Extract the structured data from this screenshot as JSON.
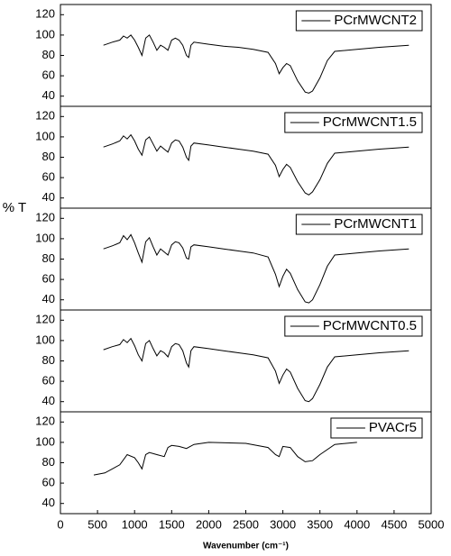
{
  "y_label": "% T",
  "chart_data": [
    {
      "type": "line",
      "xlim": [
        0,
        5000
      ],
      "ylim": [
        30,
        130
      ],
      "yticks": [
        40,
        60,
        80,
        100,
        120
      ],
      "x": [
        580,
        700,
        800,
        850,
        900,
        950,
        1000,
        1050,
        1100,
        1150,
        1200,
        1250,
        1300,
        1350,
        1400,
        1450,
        1500,
        1550,
        1600,
        1650,
        1700,
        1730,
        1760,
        1800,
        2000,
        2200,
        2400,
        2600,
        2800,
        2900,
        2950,
        3000,
        3050,
        3100,
        3200,
        3300,
        3350,
        3400,
        3500,
        3600,
        3700,
        4000,
        4300,
        4700
      ],
      "series": [
        {
          "name": "PCrMWCNT2",
          "color": "#000000",
          "values": [
            90,
            93,
            95,
            99,
            97,
            100,
            95,
            88,
            80,
            97,
            100,
            93,
            85,
            90,
            88,
            85,
            95,
            97,
            95,
            90,
            80,
            78,
            90,
            93,
            91,
            89,
            88,
            86,
            83,
            72,
            62,
            68,
            72,
            70,
            55,
            44,
            43,
            45,
            58,
            75,
            84,
            86,
            88,
            90
          ]
        }
      ]
    },
    {
      "type": "line",
      "xlim": [
        0,
        5000
      ],
      "ylim": [
        30,
        130
      ],
      "yticks": [
        40,
        60,
        80,
        100,
        120
      ],
      "x": [
        580,
        700,
        800,
        850,
        900,
        950,
        1000,
        1050,
        1100,
        1150,
        1200,
        1250,
        1300,
        1350,
        1400,
        1450,
        1500,
        1550,
        1600,
        1650,
        1700,
        1730,
        1760,
        1800,
        2000,
        2200,
        2400,
        2600,
        2800,
        2900,
        2950,
        3000,
        3050,
        3100,
        3200,
        3300,
        3350,
        3400,
        3500,
        3600,
        3700,
        4000,
        4300,
        4700
      ],
      "series": [
        {
          "name": "PCrMWCNT1.5",
          "color": "#000000",
          "values": [
            90,
            93,
            96,
            101,
            98,
            102,
            96,
            88,
            82,
            97,
            100,
            93,
            86,
            91,
            88,
            85,
            94,
            97,
            96,
            90,
            80,
            77,
            91,
            94,
            92,
            90,
            88,
            86,
            83,
            72,
            61,
            68,
            73,
            70,
            56,
            45,
            43,
            46,
            58,
            74,
            84,
            86,
            88,
            90
          ]
        }
      ]
    },
    {
      "type": "line",
      "xlim": [
        0,
        5000
      ],
      "ylim": [
        30,
        130
      ],
      "yticks": [
        40,
        60,
        80,
        100,
        120
      ],
      "x": [
        580,
        700,
        800,
        850,
        900,
        950,
        1000,
        1050,
        1100,
        1150,
        1200,
        1250,
        1300,
        1350,
        1400,
        1450,
        1500,
        1550,
        1600,
        1650,
        1700,
        1730,
        1760,
        1800,
        2000,
        2200,
        2400,
        2600,
        2800,
        2900,
        2950,
        3000,
        3050,
        3100,
        3200,
        3300,
        3350,
        3400,
        3500,
        3600,
        3700,
        4000,
        4300,
        4700
      ],
      "series": [
        {
          "name": "PCrMWCNT1",
          "color": "#000000",
          "values": [
            90,
            93,
            96,
            103,
            99,
            104,
            96,
            86,
            77,
            97,
            101,
            92,
            84,
            90,
            87,
            84,
            94,
            97,
            96,
            91,
            81,
            80,
            92,
            94,
            92,
            90,
            88,
            86,
            82,
            65,
            53,
            63,
            70,
            66,
            50,
            38,
            37,
            40,
            55,
            73,
            84,
            86,
            88,
            90
          ]
        }
      ]
    },
    {
      "type": "line",
      "xlim": [
        0,
        5000
      ],
      "ylim": [
        30,
        130
      ],
      "yticks": [
        40,
        60,
        80,
        100,
        120
      ],
      "x": [
        580,
        700,
        800,
        850,
        900,
        950,
        1000,
        1050,
        1100,
        1150,
        1200,
        1250,
        1300,
        1350,
        1400,
        1450,
        1500,
        1550,
        1600,
        1650,
        1700,
        1730,
        1760,
        1800,
        2000,
        2200,
        2400,
        2600,
        2800,
        2900,
        2950,
        3000,
        3050,
        3100,
        3200,
        3300,
        3350,
        3400,
        3500,
        3600,
        3700,
        4000,
        4300,
        4700
      ],
      "series": [
        {
          "name": "PCrMWCNT0.5",
          "color": "#000000",
          "values": [
            91,
            94,
            96,
            101,
            98,
            102,
            95,
            86,
            80,
            97,
            100,
            92,
            85,
            90,
            88,
            84,
            94,
            97,
            96,
            90,
            78,
            74,
            90,
            94,
            92,
            90,
            88,
            86,
            83,
            70,
            58,
            66,
            72,
            69,
            53,
            41,
            40,
            43,
            57,
            74,
            84,
            86,
            88,
            90
          ]
        }
      ]
    },
    {
      "type": "line",
      "xlim": [
        0,
        5000
      ],
      "ylim": [
        30,
        130
      ],
      "yticks": [
        40,
        60,
        80,
        100,
        120
      ],
      "xticks": [
        0,
        500,
        1000,
        1500,
        2000,
        2500,
        3000,
        3500,
        4000,
        4500,
        5000
      ],
      "xlabel": "Wavenumber (cm⁻¹)",
      "x": [
        450,
        600,
        800,
        900,
        1000,
        1050,
        1100,
        1150,
        1200,
        1300,
        1400,
        1450,
        1500,
        1600,
        1700,
        1800,
        2000,
        2500,
        2800,
        2900,
        2950,
        3000,
        3100,
        3200,
        3300,
        3400,
        3500,
        3700,
        4000
      ],
      "series": [
        {
          "name": "PVACr5",
          "color": "#000000",
          "values": [
            68,
            70,
            78,
            88,
            85,
            80,
            74,
            88,
            90,
            88,
            86,
            95,
            97,
            96,
            94,
            98,
            100,
            99,
            95,
            88,
            86,
            96,
            95,
            86,
            81,
            82,
            88,
            98,
            100
          ]
        }
      ]
    }
  ]
}
